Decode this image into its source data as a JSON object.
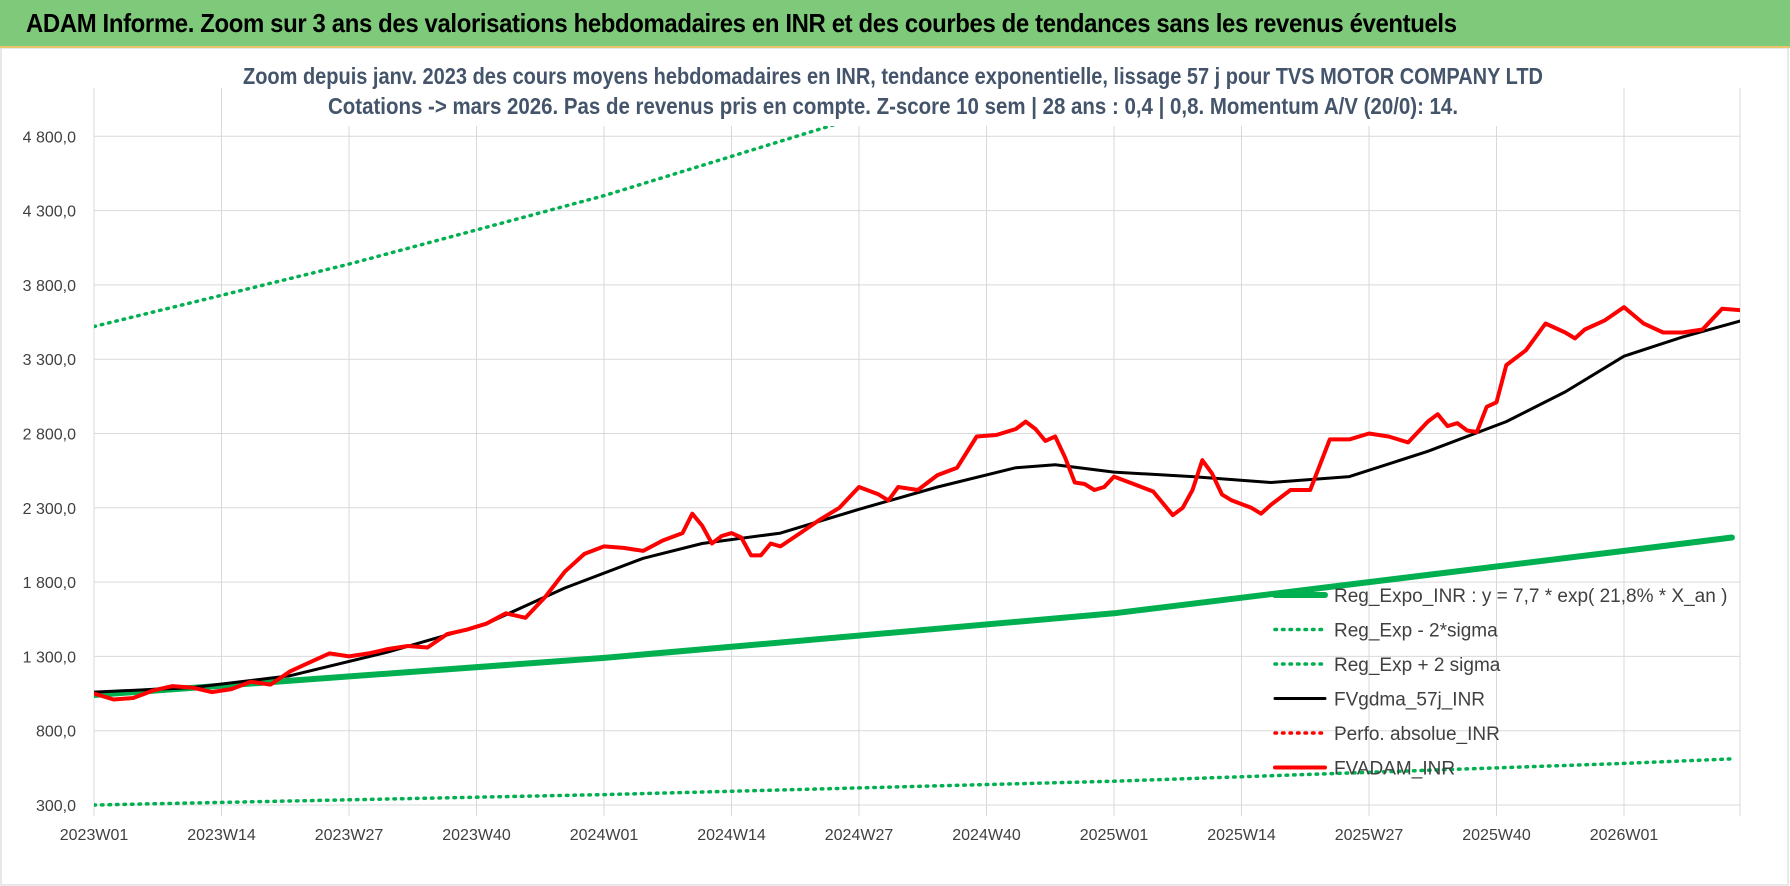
{
  "banner": {
    "title": "ADAM Informe. Zoom sur 3 ans des valorisations hebdomadaires en INR et des courbes de tendances sans les revenus éventuels",
    "background": "#7fc97a"
  },
  "chart_data": {
    "type": "line",
    "title": "Zoom depuis janv. 2023 des cours moyens hebdomadaires en INR, tendance exponentielle, lissage 57 j pour TVS MOTOR COMPANY LTD",
    "subtitle": "Cotations -> mars 2026. Pas de revenus pris en compte. Z-score 10 sem | 28 ans : 0,4 | 0,8. Momentum A/V (20/0): 14.",
    "xlabel": "",
    "ylabel": "",
    "x_tick_labels": [
      "2023W01",
      "2023W14",
      "2023W27",
      "2023W40",
      "2024W01",
      "2024W14",
      "2024W27",
      "2024W40",
      "2025W01",
      "2025W14",
      "2025W27",
      "2025W40",
      "2026W01"
    ],
    "y_tick_labels": [
      "300,0",
      "800,0",
      "1 300,0",
      "1 800,0",
      "2 300,0",
      "2 800,0",
      "3 300,0",
      "3 800,0",
      "4 300,0",
      "4 800,0"
    ],
    "ylim": [
      300,
      4900
    ],
    "weeks_total": 168,
    "grid": true,
    "legend_position": "bottom-right",
    "series": [
      {
        "name": "Reg_Expo_INR : y = 7,7 * exp( 21,8% *  X_an )",
        "color": "#00b050",
        "style": "thick",
        "values": [
          [
            0,
            1040
          ],
          [
            52,
            1290
          ],
          [
            104,
            1590
          ],
          [
            156,
            2010
          ],
          [
            167,
            2100
          ]
        ]
      },
      {
        "name": "Reg_Exp - 2*sigma",
        "color": "#00b050",
        "style": "dotted",
        "values": [
          [
            0,
            300
          ],
          [
            52,
            370
          ],
          [
            104,
            460
          ],
          [
            156,
            580
          ],
          [
            167,
            610
          ]
        ]
      },
      {
        "name": "Reg_Exp + 2 sigma",
        "color": "#00b050",
        "style": "dotted",
        "values": [
          [
            0,
            3520
          ],
          [
            26,
            3940
          ],
          [
            52,
            4400
          ],
          [
            78,
            4930
          ],
          [
            104,
            5500
          ]
        ]
      },
      {
        "name": "FVgdma_57j_INR",
        "color": "#000000",
        "style": "solid",
        "values": [
          [
            0,
            1060
          ],
          [
            10,
            1090
          ],
          [
            20,
            1170
          ],
          [
            30,
            1330
          ],
          [
            40,
            1520
          ],
          [
            48,
            1760
          ],
          [
            56,
            1960
          ],
          [
            62,
            2060
          ],
          [
            70,
            2130
          ],
          [
            78,
            2290
          ],
          [
            86,
            2440
          ],
          [
            94,
            2570
          ],
          [
            98,
            2590
          ],
          [
            104,
            2540
          ],
          [
            112,
            2510
          ],
          [
            120,
            2470
          ],
          [
            128,
            2510
          ],
          [
            136,
            2680
          ],
          [
            144,
            2880
          ],
          [
            150,
            3080
          ],
          [
            156,
            3320
          ],
          [
            162,
            3450
          ],
          [
            168,
            3560
          ],
          [
            174,
            3610
          ],
          [
            180,
            3620
          ],
          [
            182,
            3600
          ],
          [
            187,
            3560
          ]
        ]
      },
      {
        "name": "Perfo. absolue_INR",
        "color": "#ff0000",
        "style": "dotted",
        "values": []
      },
      {
        "name": "FVADAM_INR",
        "color": "#ff0000",
        "style": "thick",
        "values": [
          [
            0,
            1050
          ],
          [
            2,
            1010
          ],
          [
            4,
            1020
          ],
          [
            6,
            1070
          ],
          [
            8,
            1100
          ],
          [
            10,
            1090
          ],
          [
            12,
            1060
          ],
          [
            14,
            1080
          ],
          [
            16,
            1130
          ],
          [
            18,
            1110
          ],
          [
            20,
            1200
          ],
          [
            22,
            1260
          ],
          [
            24,
            1320
          ],
          [
            26,
            1300
          ],
          [
            28,
            1320
          ],
          [
            30,
            1350
          ],
          [
            32,
            1370
          ],
          [
            34,
            1360
          ],
          [
            36,
            1450
          ],
          [
            38,
            1480
          ],
          [
            40,
            1520
          ],
          [
            42,
            1590
          ],
          [
            44,
            1560
          ],
          [
            46,
            1700
          ],
          [
            48,
            1870
          ],
          [
            50,
            1990
          ],
          [
            52,
            2040
          ],
          [
            54,
            2030
          ],
          [
            56,
            2010
          ],
          [
            58,
            2080
          ],
          [
            60,
            2130
          ],
          [
            61,
            2260
          ],
          [
            62,
            2180
          ],
          [
            63,
            2060
          ],
          [
            64,
            2110
          ],
          [
            65,
            2130
          ],
          [
            66,
            2100
          ],
          [
            67,
            1980
          ],
          [
            68,
            1980
          ],
          [
            69,
            2060
          ],
          [
            70,
            2040
          ],
          [
            72,
            2130
          ],
          [
            74,
            2220
          ],
          [
            76,
            2300
          ],
          [
            78,
            2440
          ],
          [
            80,
            2390
          ],
          [
            81,
            2350
          ],
          [
            82,
            2440
          ],
          [
            84,
            2420
          ],
          [
            86,
            2520
          ],
          [
            88,
            2570
          ],
          [
            90,
            2780
          ],
          [
            92,
            2790
          ],
          [
            94,
            2830
          ],
          [
            95,
            2880
          ],
          [
            96,
            2830
          ],
          [
            97,
            2750
          ],
          [
            98,
            2780
          ],
          [
            99,
            2640
          ],
          [
            100,
            2470
          ],
          [
            101,
            2460
          ],
          [
            102,
            2420
          ],
          [
            103,
            2440
          ],
          [
            104,
            2510
          ],
          [
            106,
            2460
          ],
          [
            108,
            2410
          ],
          [
            110,
            2250
          ],
          [
            111,
            2300
          ],
          [
            112,
            2420
          ],
          [
            113,
            2620
          ],
          [
            114,
            2530
          ],
          [
            115,
            2390
          ],
          [
            116,
            2350
          ],
          [
            118,
            2300
          ],
          [
            119,
            2260
          ],
          [
            120,
            2320
          ],
          [
            122,
            2420
          ],
          [
            124,
            2420
          ],
          [
            126,
            2760
          ],
          [
            128,
            2760
          ],
          [
            130,
            2800
          ],
          [
            132,
            2780
          ],
          [
            134,
            2740
          ],
          [
            136,
            2880
          ],
          [
            137,
            2930
          ],
          [
            138,
            2850
          ],
          [
            139,
            2870
          ],
          [
            140,
            2820
          ],
          [
            141,
            2810
          ],
          [
            142,
            2980
          ],
          [
            143,
            3010
          ],
          [
            144,
            3260
          ],
          [
            146,
            3360
          ],
          [
            148,
            3540
          ],
          [
            150,
            3480
          ],
          [
            151,
            3440
          ],
          [
            152,
            3500
          ],
          [
            154,
            3560
          ],
          [
            156,
            3650
          ],
          [
            158,
            3540
          ],
          [
            160,
            3480
          ],
          [
            162,
            3480
          ],
          [
            164,
            3500
          ],
          [
            166,
            3640
          ],
          [
            168,
            3630
          ],
          [
            170,
            3700
          ],
          [
            172,
            3740
          ],
          [
            173,
            3840
          ],
          [
            174,
            3750
          ],
          [
            175,
            3620
          ],
          [
            176,
            3640
          ],
          [
            178,
            3700
          ],
          [
            180,
            3820
          ],
          [
            182,
            3880
          ],
          [
            184,
            3760
          ],
          [
            185,
            3620
          ],
          [
            186,
            3460
          ],
          [
            187,
            3490
          ]
        ]
      }
    ]
  }
}
